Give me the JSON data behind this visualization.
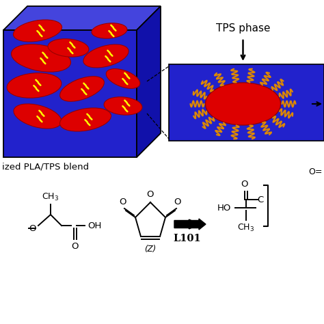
{
  "bg_color": "#ffffff",
  "box_blue": "#2222cc",
  "box_blue_dark": "#1111aa",
  "box_blue_top": "#4444dd",
  "red_color": "#dd0000",
  "yellow_color": "#ffff00",
  "orange_color": "#dd8800",
  "tps_label": "TPS phase",
  "blend_label": "ized PLA/TPS blend",
  "l101_label": "L101",
  "ellipse_positions": [
    [
      50,
      60,
      36,
      16,
      -15
    ],
    [
      120,
      55,
      38,
      16,
      10
    ],
    [
      175,
      75,
      28,
      13,
      -5
    ],
    [
      45,
      105,
      40,
      18,
      5
    ],
    [
      115,
      100,
      34,
      15,
      20
    ],
    [
      175,
      115,
      26,
      12,
      -20
    ],
    [
      55,
      145,
      44,
      19,
      -10
    ],
    [
      150,
      148,
      34,
      15,
      15
    ],
    [
      95,
      160,
      30,
      13,
      -5
    ],
    [
      50,
      185,
      36,
      15,
      10
    ],
    [
      155,
      185,
      26,
      11,
      5
    ]
  ]
}
